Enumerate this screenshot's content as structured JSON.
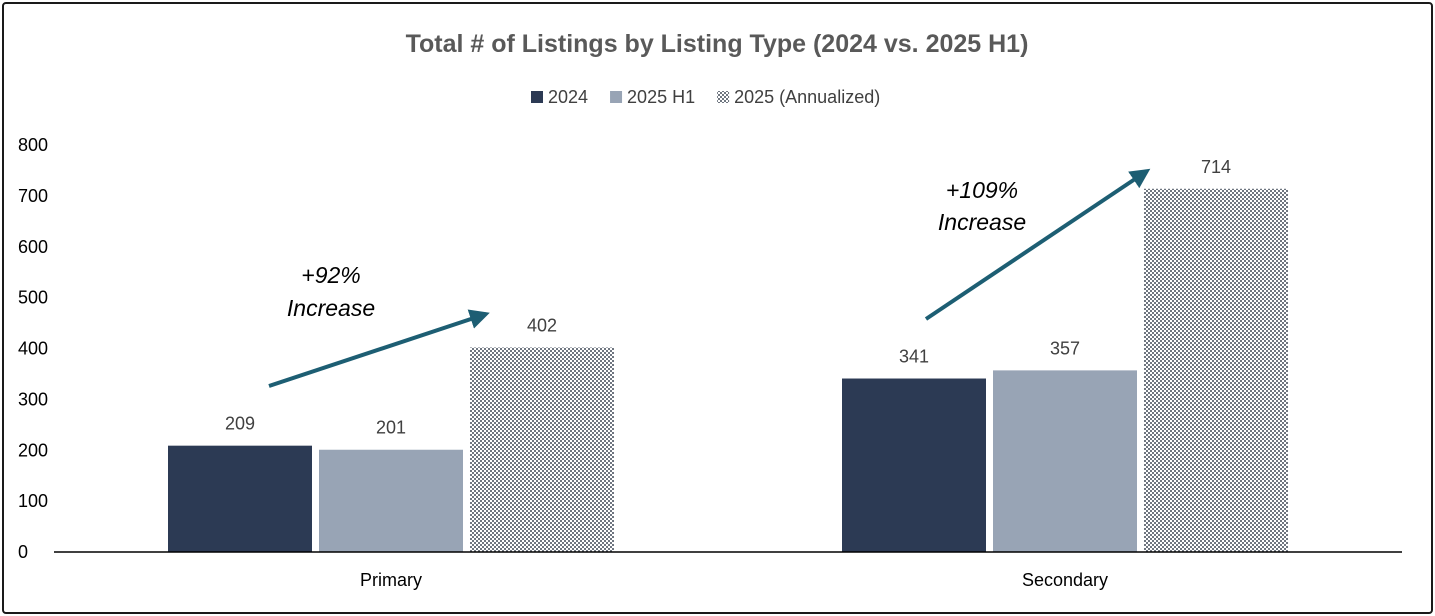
{
  "chart_data": {
    "type": "bar",
    "title": "Total # of Listings by Listing Type (2024 vs. 2025 H1)",
    "xlabel": "",
    "ylabel": "",
    "ylim": [
      0,
      800
    ],
    "yticks": [
      0,
      100,
      200,
      300,
      400,
      500,
      600,
      700,
      800
    ],
    "grid": false,
    "legend_position": "top-center",
    "categories": [
      "Primary",
      "Secondary"
    ],
    "series": [
      {
        "name": "2024",
        "values": [
          209,
          341
        ],
        "color": "#2c3a54",
        "pattern": "solid"
      },
      {
        "name": "2025 H1",
        "values": [
          201,
          357
        ],
        "color": "#98a4b5",
        "pattern": "solid"
      },
      {
        "name": "2025 (Annualized)",
        "values": [
          402,
          714
        ],
        "color": "#6f7680",
        "pattern": "checker"
      }
    ],
    "annotations": [
      {
        "category": "Primary",
        "line1": "+92%",
        "line2": "Increase",
        "arrow_color": "#1d5e73"
      },
      {
        "category": "Secondary",
        "line1": "+109%",
        "line2": "Increase",
        "arrow_color": "#1d5e73"
      }
    ]
  }
}
